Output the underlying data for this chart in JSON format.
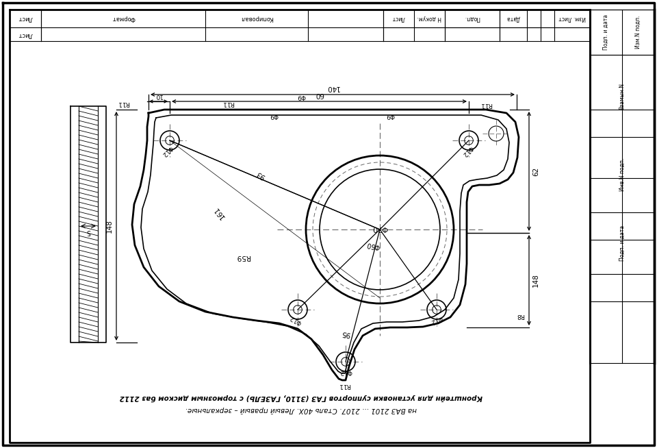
{
  "bg_color": "#ffffff",
  "line_color": "#000000",
  "title_line1": "Кронштейн для установки суппортов ГАЗ (3110, ГАЗЕЛЬ) с тормозным диском баз 2112",
  "title_line2": "на ВАЗ 2101 ... 2107. Сталь 40Х. Левый правый – зеркальные.",
  "right_labels": [
    "Изм.N подп.",
    "Подп. и дата",
    "Взамын.N",
    "Инв.N подп.",
    "Подп. и дата"
  ],
  "top_labels": [
    "Формат",
    "Копировал",
    "Изм. Лист",
    "Лист",
    "Н докум.",
    "Подп.",
    "Дата"
  ],
  "lust_label": "Лист"
}
